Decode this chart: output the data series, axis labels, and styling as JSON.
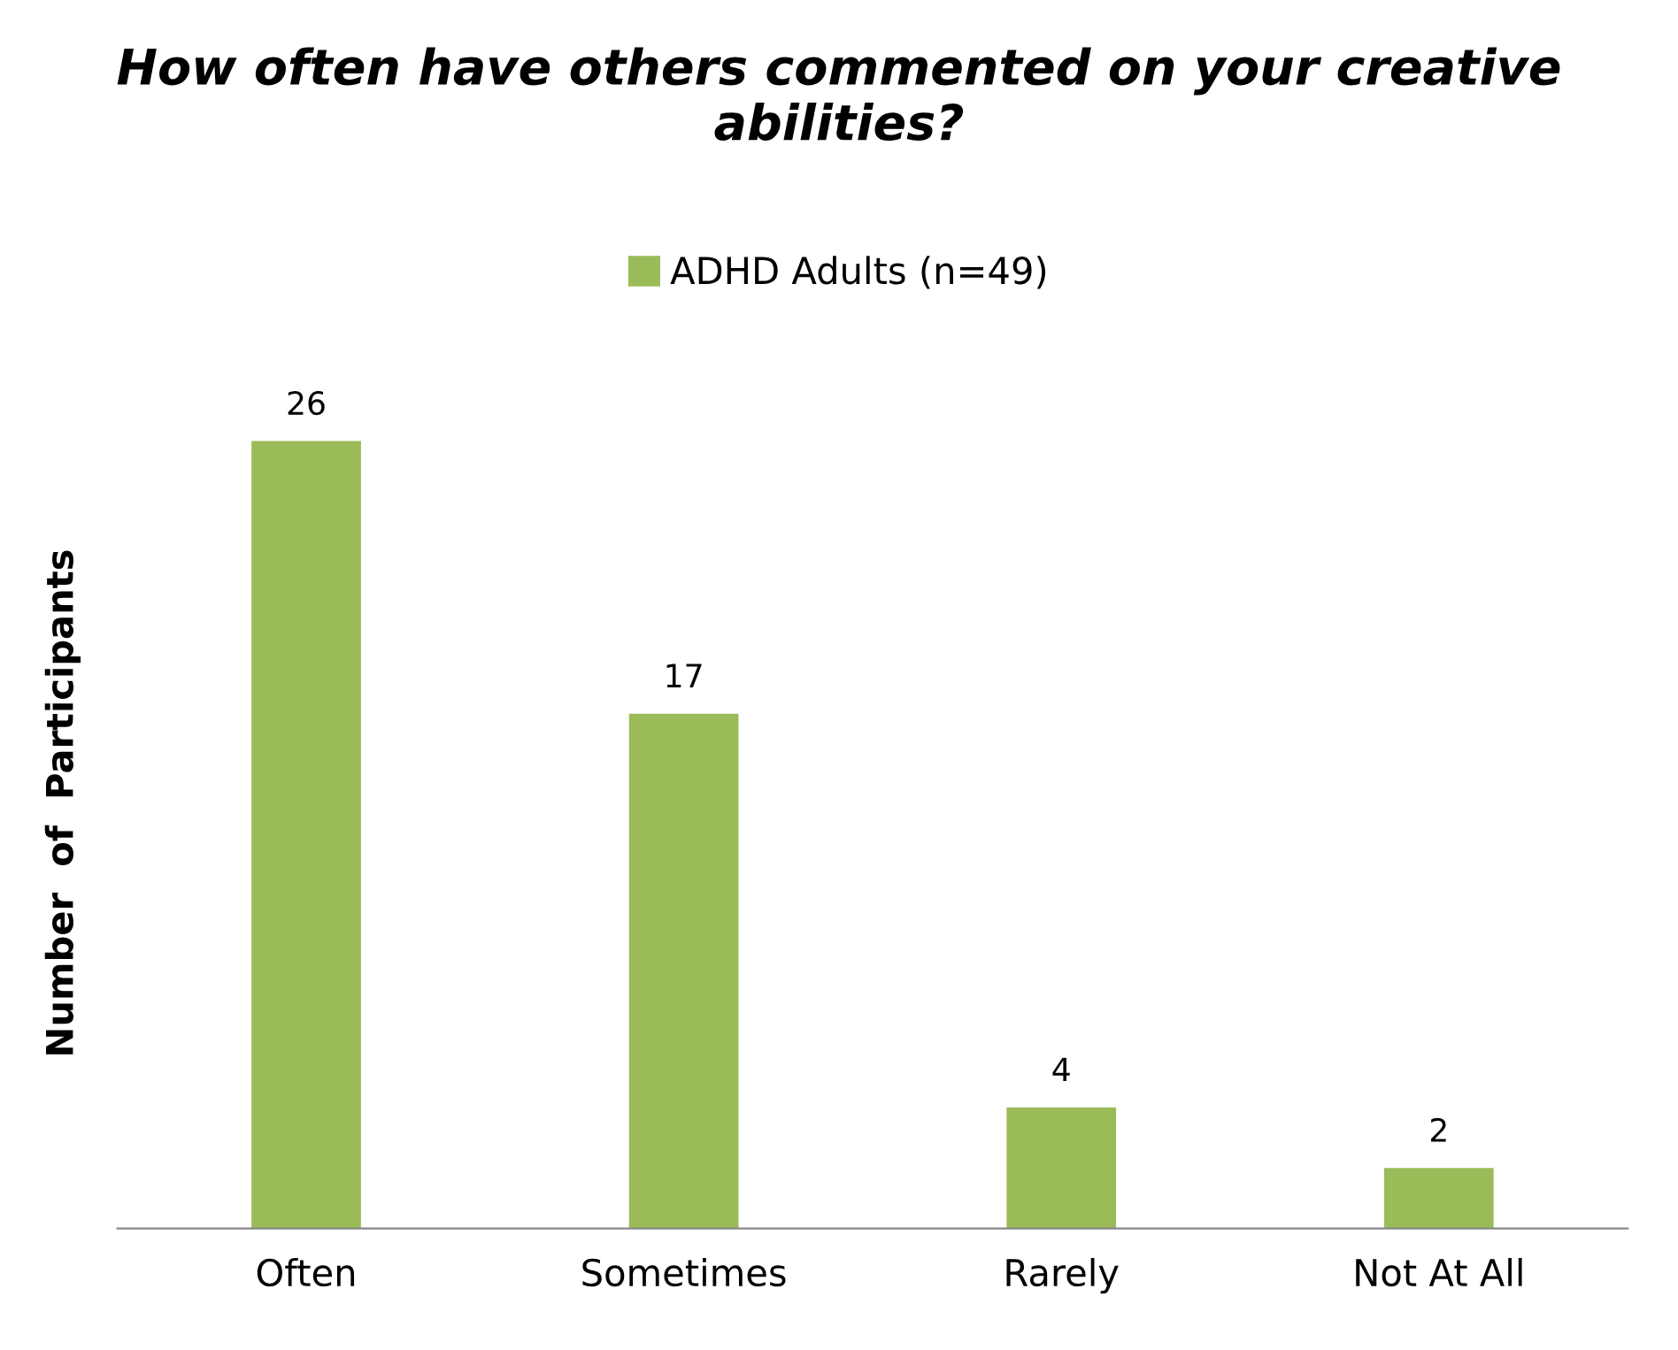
{
  "chart_data": {
    "type": "bar",
    "title": "How often have others commented on your creative abilities?",
    "ylabel": "Number  of  Participants",
    "categories": [
      "Often",
      "Sometimes",
      "Rarely",
      "Not At All"
    ],
    "series": [
      {
        "name": "ADHD Adults (n=49)",
        "color": "#9bbb59",
        "values": [
          26,
          17,
          4,
          2
        ]
      }
    ],
    "data_labels": true,
    "legend": "top",
    "grid": false,
    "tick_labels": "x"
  }
}
